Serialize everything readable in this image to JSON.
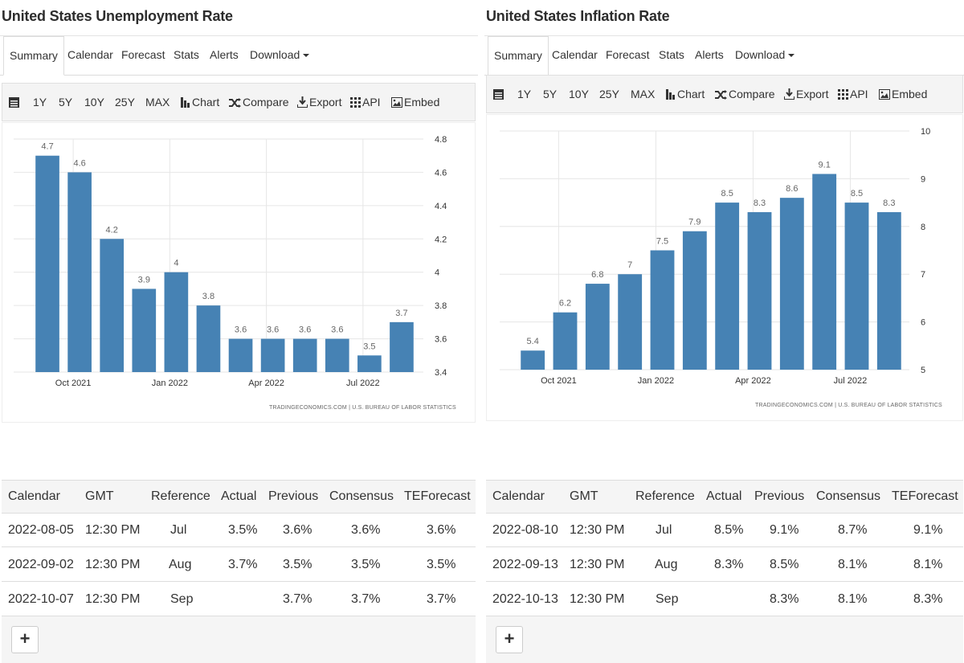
{
  "left": {
    "title": "United States Unemployment Rate",
    "tabs": [
      "Summary",
      "Calendar",
      "Forecast",
      "Stats",
      "Alerts",
      "Download"
    ],
    "toolbar": {
      "ranges": [
        "1Y",
        "5Y",
        "10Y",
        "25Y",
        "MAX"
      ],
      "chart": "Chart",
      "compare": "Compare",
      "export": "Export",
      "api": "API",
      "embed": "Embed"
    },
    "source": "TRADINGECONOMICS.COM  |  U.S. BUREAU OF LABOR STATISTICS",
    "table": {
      "headers": [
        "Calendar",
        "GMT",
        "Reference",
        "Actual",
        "Previous",
        "Consensus",
        "TEForecast"
      ],
      "rows": [
        [
          "2022-08-05",
          "12:30 PM",
          "Jul",
          "3.5%",
          "3.6%",
          "3.6%",
          "3.6%"
        ],
        [
          "2022-09-02",
          "12:30 PM",
          "Aug",
          "3.7%",
          "3.5%",
          "3.5%",
          "3.5%"
        ],
        [
          "2022-10-07",
          "12:30 PM",
          "Sep",
          "",
          "3.7%",
          "3.7%",
          "3.7%"
        ]
      ],
      "plus": "+"
    }
  },
  "right": {
    "title": "United States Inflation Rate",
    "tabs": [
      "Summary",
      "Calendar",
      "Forecast",
      "Stats",
      "Alerts",
      "Download"
    ],
    "toolbar": {
      "ranges": [
        "1Y",
        "5Y",
        "10Y",
        "25Y",
        "MAX"
      ],
      "chart": "Chart",
      "compare": "Compare",
      "export": "Export",
      "api": "API",
      "embed": "Embed"
    },
    "source": "TRADINGECONOMICS.COM  |  U.S. BUREAU OF LABOR STATISTICS",
    "table": {
      "headers": [
        "Calendar",
        "GMT",
        "Reference",
        "Actual",
        "Previous",
        "Consensus",
        "TEForecast"
      ],
      "rows": [
        [
          "2022-08-10",
          "12:30 PM",
          "Jul",
          "8.5%",
          "9.1%",
          "8.7%",
          "9.1%"
        ],
        [
          "2022-09-13",
          "12:30 PM",
          "Aug",
          "8.3%",
          "8.5%",
          "8.1%",
          "8.1%"
        ],
        [
          "2022-10-13",
          "12:30 PM",
          "Sep",
          "",
          "8.3%",
          "8.1%",
          "8.3%"
        ]
      ],
      "plus": "+"
    }
  },
  "colors": {
    "bar": "#4682b4",
    "grid": "#e6e6e6",
    "axis_text": "#333333",
    "label_text": "#666666"
  },
  "chart_data": [
    {
      "type": "bar",
      "title": "United States Unemployment Rate",
      "values": [
        4.7,
        4.6,
        4.2,
        3.9,
        4.0,
        3.8,
        3.6,
        3.6,
        3.6,
        3.6,
        3.5,
        3.7
      ],
      "labels": [
        "4.7",
        "4.6",
        "4.2",
        "3.9",
        "4",
        "3.8",
        "3.6",
        "3.6",
        "3.6",
        "3.6",
        "3.5",
        "3.7"
      ],
      "xticks": [
        {
          "label": "Oct 2021",
          "index": 1.3
        },
        {
          "label": "Jan 2022",
          "index": 4.3
        },
        {
          "label": "Apr 2022",
          "index": 7.3
        },
        {
          "label": "Jul 2022",
          "index": 10.3
        }
      ],
      "yticks": [
        "4.8",
        "4.6",
        "4.4",
        "4.2",
        "4",
        "3.8",
        "3.6",
        "3.4"
      ],
      "ylim": [
        3.4,
        4.8
      ],
      "ytick_values": [
        4.8,
        4.6,
        4.4,
        4.2,
        4.0,
        3.8,
        3.6,
        3.4
      ],
      "grid": true,
      "yaxis_side": "right"
    },
    {
      "type": "bar",
      "title": "United States Inflation Rate",
      "values": [
        5.4,
        6.2,
        6.8,
        7.0,
        7.5,
        7.9,
        8.5,
        8.3,
        8.6,
        9.1,
        8.5,
        8.3
      ],
      "labels": [
        "5.4",
        "6.2",
        "6.8",
        "7",
        "7.5",
        "7.9",
        "8.5",
        "8.3",
        "8.6",
        "9.1",
        "8.5",
        "8.3"
      ],
      "xticks": [
        {
          "label": "Oct 2021",
          "index": 1.3
        },
        {
          "label": "Jan 2022",
          "index": 4.3
        },
        {
          "label": "Apr 2022",
          "index": 7.3
        },
        {
          "label": "Jul 2022",
          "index": 10.3
        }
      ],
      "yticks": [
        "10",
        "9",
        "8",
        "7",
        "6",
        "5"
      ],
      "ylim": [
        5,
        10
      ],
      "ytick_values": [
        10,
        9,
        8,
        7,
        6,
        5
      ],
      "grid": true,
      "yaxis_side": "right"
    }
  ]
}
